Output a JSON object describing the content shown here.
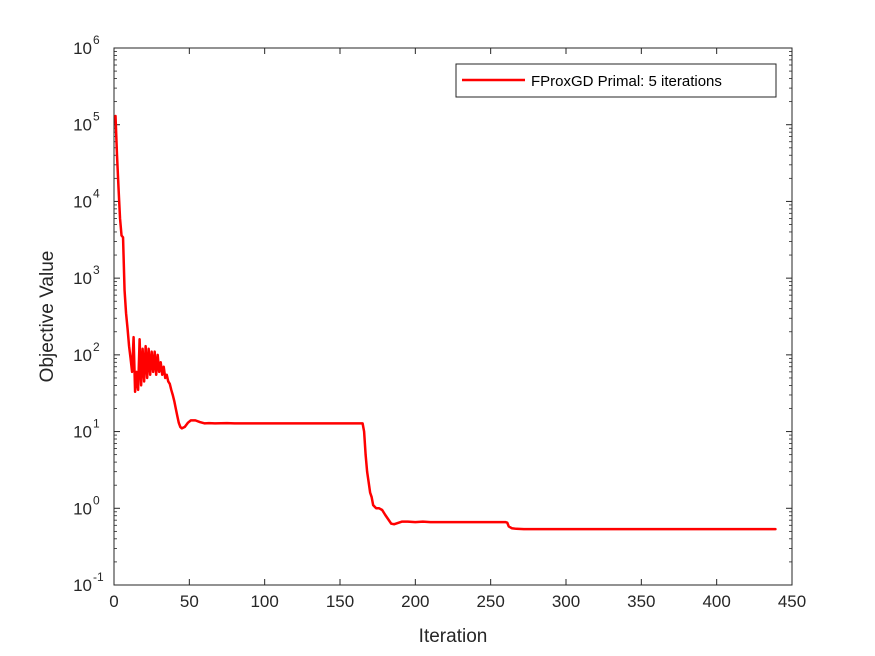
{
  "chart_data": {
    "type": "line",
    "title": "",
    "xlabel": "Iteration",
    "ylabel": "Objective Value",
    "xlim": [
      0,
      450
    ],
    "ylim": [
      0.1,
      1000000
    ],
    "yscale": "log",
    "grid": false,
    "legend_position": "top-right",
    "x_ticks": [
      0,
      50,
      100,
      150,
      200,
      250,
      300,
      350,
      400,
      450
    ],
    "x_tick_labels": [
      "0",
      "50",
      "100",
      "150",
      "200",
      "250",
      "300",
      "350",
      "400",
      "450"
    ],
    "y_ticks": [
      {
        "base": "10",
        "exp": "-1",
        "value": 0.1
      },
      {
        "base": "10",
        "exp": "0",
        "value": 1
      },
      {
        "base": "10",
        "exp": "1",
        "value": 10
      },
      {
        "base": "10",
        "exp": "2",
        "value": 100
      },
      {
        "base": "10",
        "exp": "3",
        "value": 1000
      },
      {
        "base": "10",
        "exp": "4",
        "value": 10000
      },
      {
        "base": "10",
        "exp": "5",
        "value": 100000
      },
      {
        "base": "10",
        "exp": "6",
        "value": 1000000
      }
    ],
    "series": [
      {
        "name": "FProxGD Primal: 5 iterations",
        "color": "#ff0000",
        "points": [
          [
            1,
            130000
          ],
          [
            2,
            40000
          ],
          [
            3,
            15000
          ],
          [
            4,
            6000
          ],
          [
            5,
            3600
          ],
          [
            6,
            3400
          ],
          [
            7,
            700
          ],
          [
            8,
            350
          ],
          [
            9,
            220
          ],
          [
            10,
            130
          ],
          [
            11,
            90
          ],
          [
            12,
            60
          ],
          [
            13,
            170
          ],
          [
            14,
            33
          ],
          [
            15,
            60
          ],
          [
            16,
            35
          ],
          [
            17,
            160
          ],
          [
            18,
            40
          ],
          [
            19,
            120
          ],
          [
            20,
            45
          ],
          [
            21,
            130
          ],
          [
            22,
            50
          ],
          [
            23,
            120
          ],
          [
            24,
            55
          ],
          [
            25,
            110
          ],
          [
            26,
            60
          ],
          [
            27,
            110
          ],
          [
            28,
            55
          ],
          [
            29,
            100
          ],
          [
            30,
            60
          ],
          [
            31,
            80
          ],
          [
            32,
            55
          ],
          [
            33,
            70
          ],
          [
            34,
            50
          ],
          [
            35,
            55
          ],
          [
            36,
            45
          ],
          [
            37,
            42
          ],
          [
            38,
            35
          ],
          [
            39,
            30
          ],
          [
            40,
            25
          ],
          [
            41,
            20
          ],
          [
            42,
            16
          ],
          [
            43,
            13
          ],
          [
            44,
            11.5
          ],
          [
            45,
            11
          ],
          [
            47,
            11.5
          ],
          [
            49,
            13
          ],
          [
            51,
            14
          ],
          [
            54,
            14
          ],
          [
            57,
            13.3
          ],
          [
            60,
            12.8
          ],
          [
            63,
            12.9
          ],
          [
            67,
            12.8
          ],
          [
            75,
            12.9
          ],
          [
            80,
            12.8
          ],
          [
            100,
            12.8
          ],
          [
            130,
            12.8
          ],
          [
            150,
            12.8
          ],
          [
            160,
            12.8
          ],
          [
            165,
            12.8
          ],
          [
            166,
            10
          ],
          [
            167,
            5
          ],
          [
            168,
            3
          ],
          [
            169,
            2.2
          ],
          [
            170,
            1.6
          ],
          [
            171,
            1.4
          ],
          [
            172,
            1.1
          ],
          [
            174,
            1.0
          ],
          [
            176,
            1.0
          ],
          [
            178,
            0.95
          ],
          [
            180,
            0.82
          ],
          [
            182,
            0.72
          ],
          [
            184,
            0.63
          ],
          [
            186,
            0.62
          ],
          [
            188,
            0.64
          ],
          [
            191,
            0.67
          ],
          [
            195,
            0.67
          ],
          [
            200,
            0.66
          ],
          [
            205,
            0.67
          ],
          [
            210,
            0.66
          ],
          [
            220,
            0.66
          ],
          [
            230,
            0.66
          ],
          [
            240,
            0.66
          ],
          [
            250,
            0.66
          ],
          [
            260,
            0.66
          ],
          [
            261,
            0.65
          ],
          [
            262,
            0.58
          ],
          [
            264,
            0.55
          ],
          [
            267,
            0.54
          ],
          [
            272,
            0.535
          ],
          [
            300,
            0.535
          ],
          [
            350,
            0.535
          ],
          [
            400,
            0.535
          ],
          [
            439,
            0.535
          ]
        ]
      }
    ]
  }
}
